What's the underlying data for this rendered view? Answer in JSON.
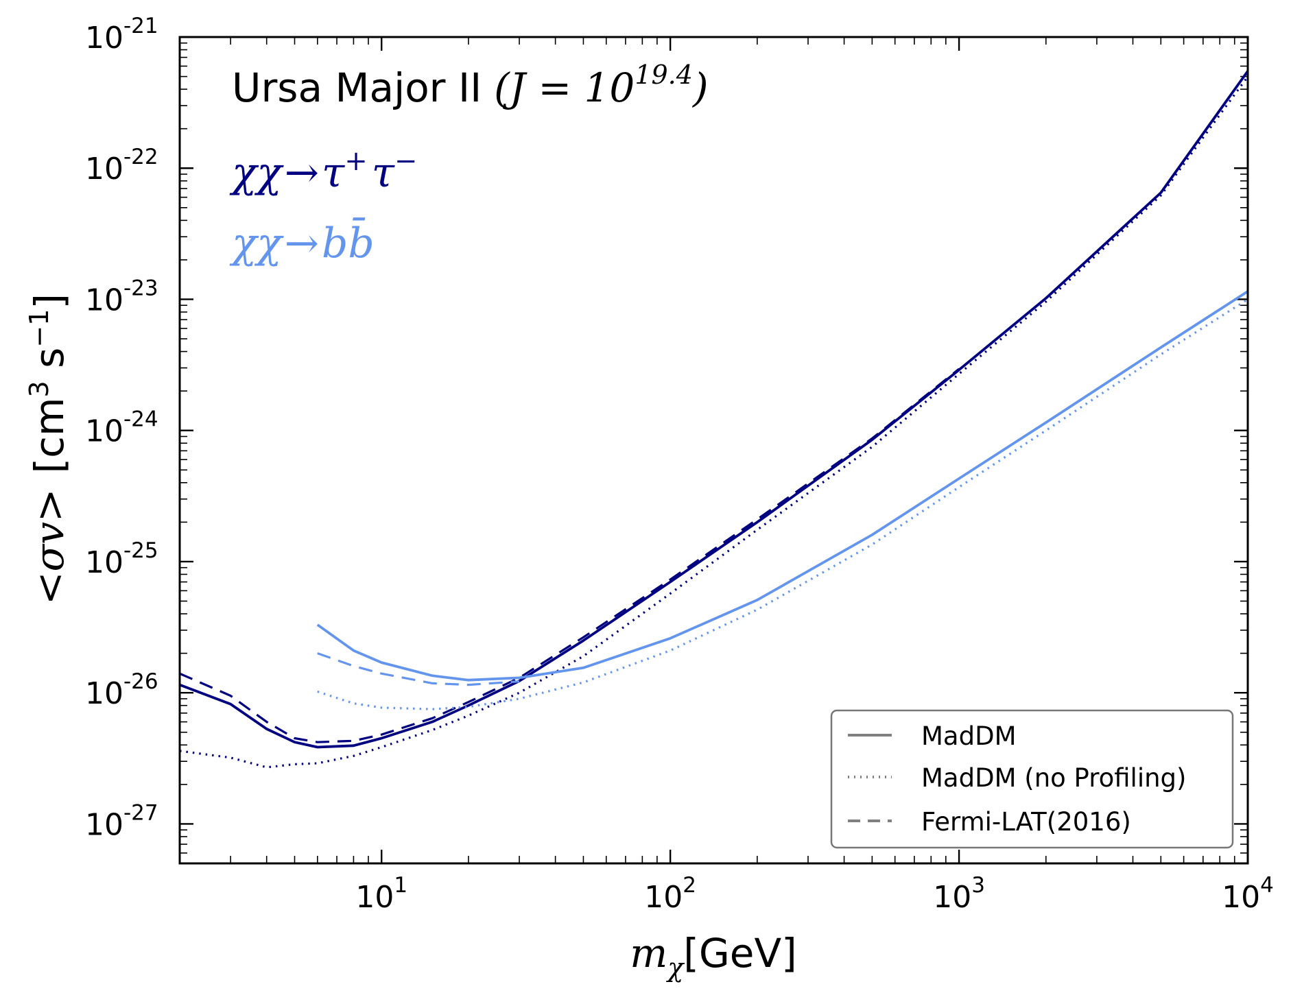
{
  "chart_data": {
    "type": "line",
    "title": "Ursa Major II",
    "title_math": "(J = 10",
    "title_math_exp": "19.4",
    "title_math_close": ")",
    "channels": [
      {
        "label_chi": "χχ",
        "label_arrow": "→",
        "label_final": "τ",
        "label_sup1": "+",
        "label_final2": "τ",
        "label_sup2": "−",
        "color": "#000080"
      },
      {
        "label_chi": "χχ",
        "label_arrow": "→",
        "label_final": "b",
        "label_final2": "b̄",
        "color": "#6495ed"
      }
    ],
    "xlabel_math": "m",
    "xlabel_sub": "χ",
    "xlabel_unit": "[GeV]",
    "ylabel_math": "<σv>",
    "ylabel_unit_open": "[cm",
    "ylabel_unit_exp1": "3",
    "ylabel_unit_mid": " s",
    "ylabel_unit_exp2": "−1",
    "ylabel_unit_close": "]",
    "xscale": "log",
    "yscale": "log",
    "xlim": [
      2,
      10000
    ],
    "ylim": [
      5e-28,
      1e-21
    ],
    "x_ticks": [
      {
        "value": 10,
        "base": "10",
        "exp": "1"
      },
      {
        "value": 100,
        "base": "10",
        "exp": "2"
      },
      {
        "value": 1000,
        "base": "10",
        "exp": "3"
      },
      {
        "value": 10000,
        "base": "10",
        "exp": "4"
      }
    ],
    "y_ticks": [
      {
        "value": 1e-27,
        "base": "10",
        "exp": "-27"
      },
      {
        "value": 1e-26,
        "base": "10",
        "exp": "-26"
      },
      {
        "value": 1e-25,
        "base": "10",
        "exp": "-25"
      },
      {
        "value": 1e-24,
        "base": "10",
        "exp": "-24"
      },
      {
        "value": 1e-23,
        "base": "10",
        "exp": "-23"
      },
      {
        "value": 1e-22,
        "base": "10",
        "exp": "-22"
      },
      {
        "value": 1e-21,
        "base": "10",
        "exp": "-21"
      }
    ],
    "legend": {
      "placement": "lower-right",
      "entries": [
        {
          "label": "MadDM",
          "style": "solid"
        },
        {
          "label": "MadDM (no Profiling)",
          "style": "dotted"
        },
        {
          "label": "Fermi-LAT(2016)",
          "style": "dashed"
        }
      ]
    },
    "series": [
      {
        "name": "tau MadDM",
        "channel": "tau",
        "style": "solid",
        "color": "#000080",
        "x": [
          2,
          3,
          4,
          5,
          6,
          8,
          10,
          15,
          20,
          30,
          50,
          100,
          200,
          500,
          1000,
          2000,
          5000,
          10000
        ],
        "y": [
          1.15e-26,
          8.2e-27,
          5.3e-27,
          4.2e-27,
          3.85e-27,
          3.95e-27,
          4.5e-27,
          6e-27,
          8e-27,
          1.23e-26,
          2.5e-26,
          7e-26,
          2e-25,
          8.5e-25,
          2.9e-24,
          1.02e-23,
          6.5e-23,
          5.5e-22
        ]
      },
      {
        "name": "tau MadDM no profiling",
        "channel": "tau",
        "style": "dotted",
        "color": "#000080",
        "x": [
          2,
          3,
          4,
          5,
          6,
          8,
          10,
          15,
          20,
          30,
          50,
          100,
          200,
          500,
          1000,
          2000,
          5000,
          10000
        ],
        "y": [
          3.6e-27,
          3.2e-27,
          2.7e-27,
          2.85e-27,
          2.9e-27,
          3.3e-27,
          3.85e-27,
          5.2e-27,
          6.7e-27,
          1e-26,
          1.9e-26,
          5.7e-26,
          1.75e-25,
          7.5e-25,
          2.7e-24,
          9.6e-24,
          6.2e-23,
          5e-22
        ]
      },
      {
        "name": "tau Fermi-LAT",
        "channel": "tau",
        "style": "dashed",
        "color": "#000080",
        "x": [
          2,
          3,
          4,
          5,
          6,
          8,
          10,
          15,
          20,
          30,
          50,
          100,
          200,
          500,
          1000
        ],
        "y": [
          1.4e-26,
          9.5e-27,
          6e-27,
          4.5e-27,
          4.2e-27,
          4.3e-27,
          4.8e-27,
          6.4e-27,
          8.5e-27,
          1.3e-26,
          2.65e-26,
          7.3e-26,
          2.1e-25,
          8.7e-25,
          2.95e-24
        ]
      },
      {
        "name": "bb MadDM",
        "channel": "bb",
        "style": "solid",
        "color": "#6495ed",
        "x": [
          6,
          8,
          10,
          15,
          20,
          30,
          50,
          100,
          200,
          500,
          1000,
          2000,
          5000,
          10000
        ],
        "y": [
          3.3e-26,
          2.1e-26,
          1.7e-26,
          1.35e-26,
          1.25e-26,
          1.3e-26,
          1.55e-26,
          2.6e-26,
          5.1e-26,
          1.6e-25,
          4.3e-25,
          1.15e-24,
          4.3e-24,
          1.15e-23
        ]
      },
      {
        "name": "bb MadDM no profiling",
        "channel": "bb",
        "style": "dotted",
        "color": "#6495ed",
        "x": [
          6,
          8,
          10,
          15,
          20,
          30,
          50,
          100,
          200,
          500,
          1000,
          2000,
          5000,
          10000
        ],
        "y": [
          1.02e-26,
          8.3e-27,
          7.7e-27,
          7.5e-27,
          7.8e-27,
          9e-27,
          1.2e-26,
          2.1e-26,
          4.3e-26,
          1.35e-25,
          3.7e-25,
          1e-24,
          3.8e-24,
          1e-23
        ]
      },
      {
        "name": "bb Fermi-LAT",
        "channel": "bb",
        "style": "dashed",
        "color": "#6495ed",
        "x": [
          6,
          8,
          10,
          15,
          20,
          30
        ],
        "y": [
          2e-26,
          1.6e-26,
          1.4e-26,
          1.18e-26,
          1.15e-26,
          1.22e-26
        ]
      }
    ]
  }
}
